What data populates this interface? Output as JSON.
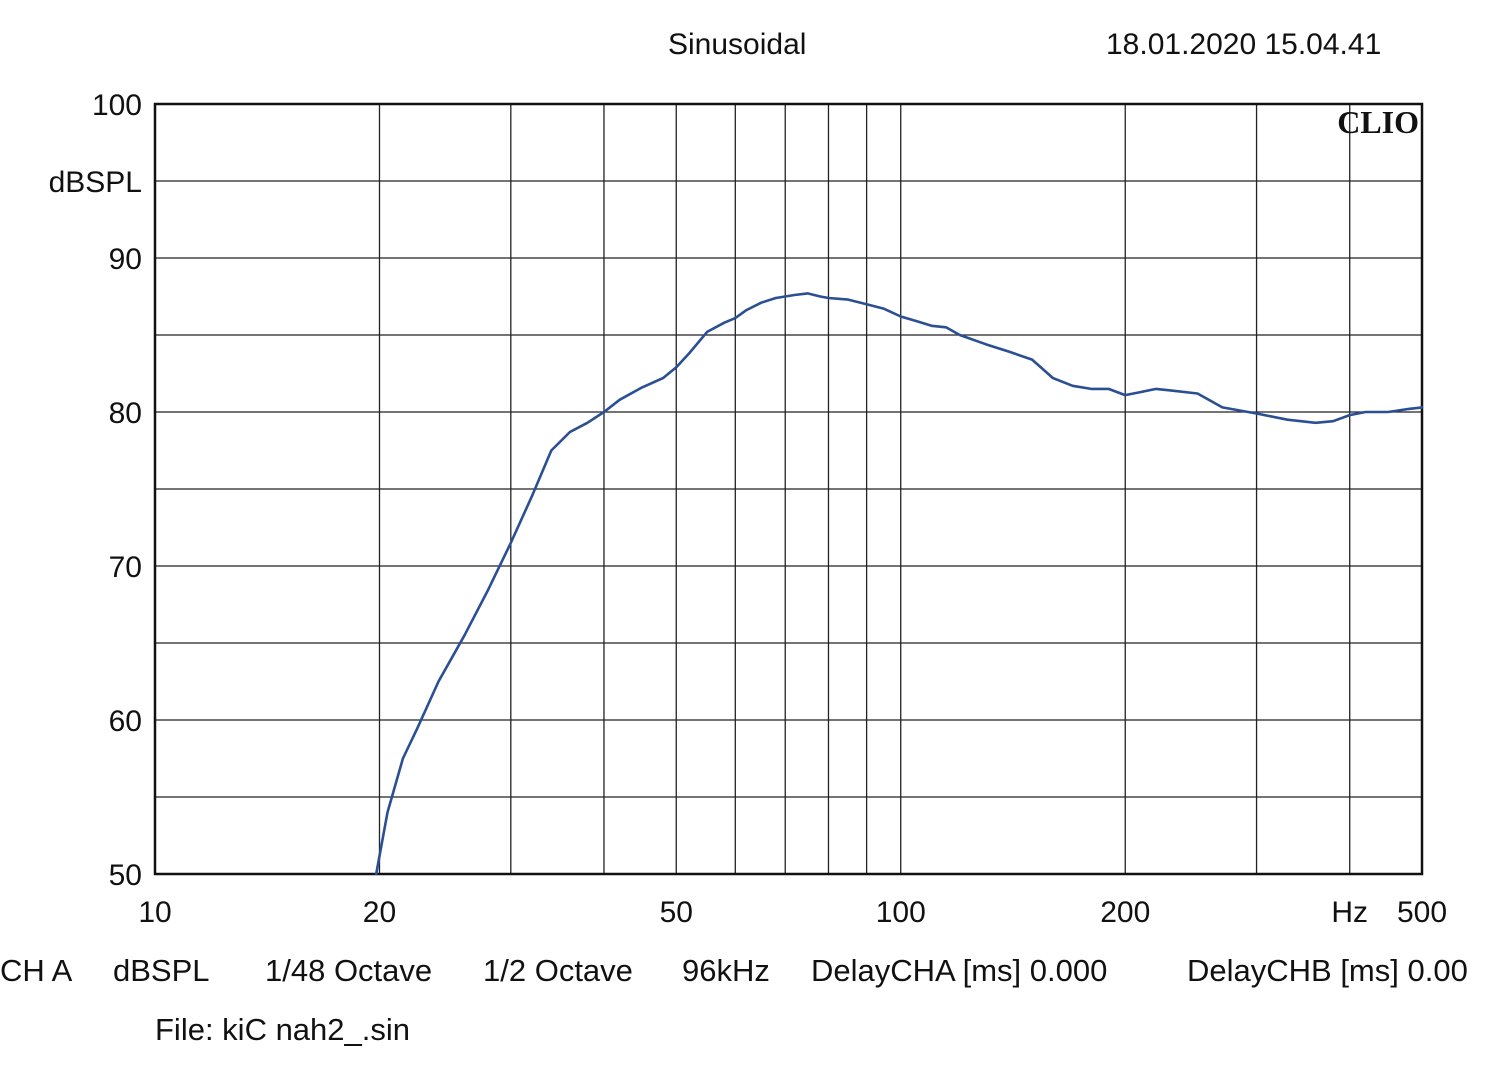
{
  "header": {
    "title": "Sinusoidal",
    "timestamp": "18.01.2020 15.04.41"
  },
  "brand": "CLIO",
  "footer": {
    "channel": "CH A",
    "unit": "dBSPL",
    "resolution": "1/48 Octave",
    "smoothing": "1/2 Octave",
    "sample_rate": "96kHz",
    "delay_a": "DelayCHA [ms] 0.000",
    "delay_b": "DelayCHB [ms] 0.00",
    "file": "File: kiC nah2_.sin"
  },
  "chart_data": {
    "type": "line",
    "title": "Sinusoidal",
    "xlabel": "Hz",
    "ylabel": "dBSPL",
    "xscale": "log",
    "xlim": [
      10,
      500
    ],
    "ylim": [
      50,
      100
    ],
    "grid": true,
    "x_ticks": [
      {
        "value": 10,
        "label": "10"
      },
      {
        "value": 20,
        "label": "20"
      },
      {
        "value": 50,
        "label": "50"
      },
      {
        "value": 100,
        "label": "100"
      },
      {
        "value": 200,
        "label": "200"
      },
      {
        "value": 500,
        "label": "500"
      }
    ],
    "x_unit_label": "Hz",
    "x_unit_position": 400,
    "x_gridlines": [
      20,
      30,
      40,
      50,
      60,
      70,
      80,
      90,
      100,
      200,
      300,
      400
    ],
    "y_ticks": [
      {
        "value": 100,
        "label": "100"
      },
      {
        "value": 90,
        "label": "90"
      },
      {
        "value": 80,
        "label": "80"
      },
      {
        "value": 70,
        "label": "70"
      },
      {
        "value": 60,
        "label": "60"
      },
      {
        "value": 50,
        "label": "50"
      }
    ],
    "y_unit_label": "dBSPL",
    "y_unit_position": 95,
    "y_gridlines": [
      55,
      60,
      65,
      70,
      75,
      80,
      85,
      90,
      95
    ],
    "line_color": "#2a4f94",
    "series": [
      {
        "x": [
          19.8,
          20.5,
          21.5,
          22.5,
          24,
          26,
          28,
          30,
          32,
          34,
          36,
          38,
          40,
          42,
          45,
          48,
          50,
          52,
          55,
          58,
          60,
          62,
          65,
          68,
          70,
          72,
          75,
          78,
          80,
          85,
          90,
          95,
          100,
          105,
          110,
          115,
          120,
          130,
          140,
          150,
          160,
          170,
          180,
          190,
          200,
          210,
          220,
          230,
          250,
          270,
          300,
          330,
          360,
          380,
          400,
          420,
          450,
          480,
          500
        ],
        "y": [
          50,
          54,
          57.5,
          59.5,
          62.5,
          65.5,
          68.5,
          71.5,
          74.5,
          77.5,
          78.7,
          79.3,
          80,
          80.8,
          81.6,
          82.2,
          82.9,
          83.8,
          85.2,
          85.8,
          86.1,
          86.6,
          87.1,
          87.4,
          87.5,
          87.6,
          87.7,
          87.5,
          87.4,
          87.3,
          87.0,
          86.7,
          86.2,
          85.9,
          85.6,
          85.5,
          85.0,
          84.4,
          83.9,
          83.4,
          82.2,
          81.7,
          81.5,
          81.5,
          81.1,
          81.3,
          81.5,
          81.4,
          81.2,
          80.3,
          79.9,
          79.5,
          79.3,
          79.4,
          79.8,
          80.0,
          80.0,
          80.2,
          80.3
        ]
      }
    ]
  }
}
